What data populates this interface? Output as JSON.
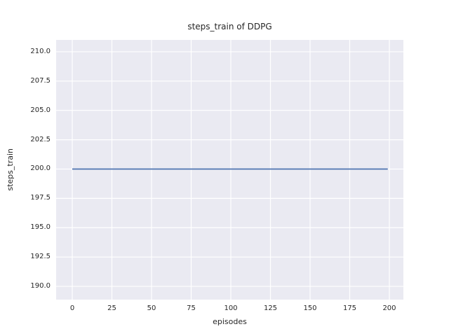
{
  "chart_data": {
    "type": "line",
    "title": "steps_train of DDPG",
    "xlabel": "episodes",
    "ylabel": "steps_train",
    "xlim": [
      -10.18,
      208.85
    ],
    "ylim": [
      188.87,
      211.01
    ],
    "xticks": [
      0,
      25,
      50,
      75,
      100,
      125,
      150,
      175,
      200
    ],
    "xtick_labels": [
      "0",
      "25",
      "50",
      "75",
      "100",
      "125",
      "150",
      "175",
      "200"
    ],
    "yticks": [
      190.0,
      192.5,
      195.0,
      197.5,
      200.0,
      202.5,
      205.0,
      207.5,
      210.0
    ],
    "ytick_labels": [
      "190.0",
      "192.5",
      "195.0",
      "197.5",
      "200.0",
      "202.5",
      "205.0",
      "207.5",
      "210.0"
    ],
    "grid": true,
    "legend": false,
    "series": [
      {
        "name": "steps_train",
        "color": "#4C72B0",
        "x": [
          0,
          199
        ],
        "y": [
          200,
          200
        ]
      }
    ],
    "colors": {
      "figure_background": "#FFFFFF",
      "axes_background": "#EAEAF2",
      "grid": "#FFFFFF",
      "text": "#262626"
    }
  }
}
